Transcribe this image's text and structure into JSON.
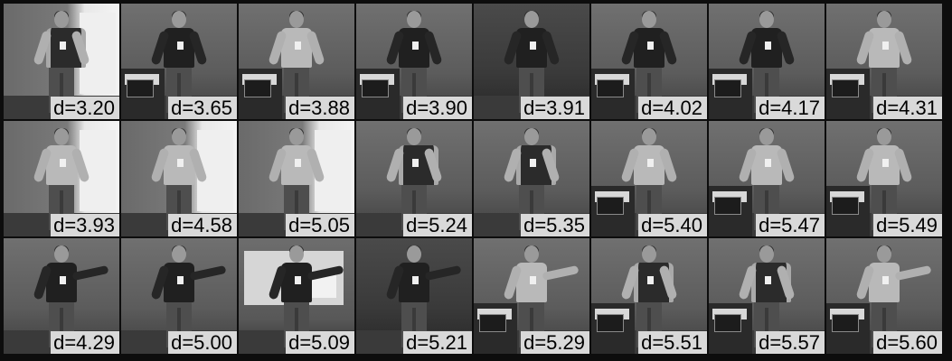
{
  "figure": {
    "rows": [
      {
        "cells": [
          {
            "d": "d=3.20",
            "scene": "bright",
            "pose": "vest"
          },
          {
            "d": "d=3.65",
            "scene": "podium",
            "pose": "dark-shirt"
          },
          {
            "d": "d=3.88",
            "scene": "podium",
            "pose": "light-shirt"
          },
          {
            "d": "d=3.90",
            "scene": "podium",
            "pose": "dark-shirt"
          },
          {
            "d": "d=3.91",
            "scene": "dark",
            "pose": "dark-shirt"
          },
          {
            "d": "d=4.02",
            "scene": "podium",
            "pose": "dark-shirt"
          },
          {
            "d": "d=4.17",
            "scene": "podium",
            "pose": "dark-shirt"
          },
          {
            "d": "d=4.31",
            "scene": "podium",
            "pose": "light-shirt"
          }
        ]
      },
      {
        "cells": [
          {
            "d": "d=3.93",
            "scene": "bright",
            "pose": "light-shirt"
          },
          {
            "d": "d=4.58",
            "scene": "bright",
            "pose": "light-shirt"
          },
          {
            "d": "d=5.05",
            "scene": "bright",
            "pose": "light-shirt"
          },
          {
            "d": "d=5.24",
            "scene": "plain",
            "pose": "vest"
          },
          {
            "d": "d=5.35",
            "scene": "plain",
            "pose": "vest"
          },
          {
            "d": "d=5.40",
            "scene": "podium",
            "pose": "light-shirt"
          },
          {
            "d": "d=5.47",
            "scene": "podium",
            "pose": "light-shirt"
          },
          {
            "d": "d=5.49",
            "scene": "podium",
            "pose": "light-shirt"
          }
        ]
      },
      {
        "cells": [
          {
            "d": "d=4.29",
            "scene": "plain",
            "pose": "dark-shirt-point"
          },
          {
            "d": "d=5.00",
            "scene": "plain",
            "pose": "dark-shirt-point"
          },
          {
            "d": "d=5.09",
            "scene": "poster",
            "pose": "dark-shirt-point"
          },
          {
            "d": "d=5.21",
            "scene": "dark",
            "pose": "dark-shirt-point"
          },
          {
            "d": "d=5.29",
            "scene": "podium",
            "pose": "light-shirt-point"
          },
          {
            "d": "d=5.51",
            "scene": "podium",
            "pose": "vest"
          },
          {
            "d": "d=5.57",
            "scene": "podium",
            "pose": "vest"
          },
          {
            "d": "d=5.60",
            "scene": "podium",
            "pose": "light-shirt-point"
          }
        ]
      }
    ]
  },
  "colors": {
    "border": "#0d0d0d",
    "label_bg": "#d9d9d9",
    "label_text": "#000000"
  }
}
